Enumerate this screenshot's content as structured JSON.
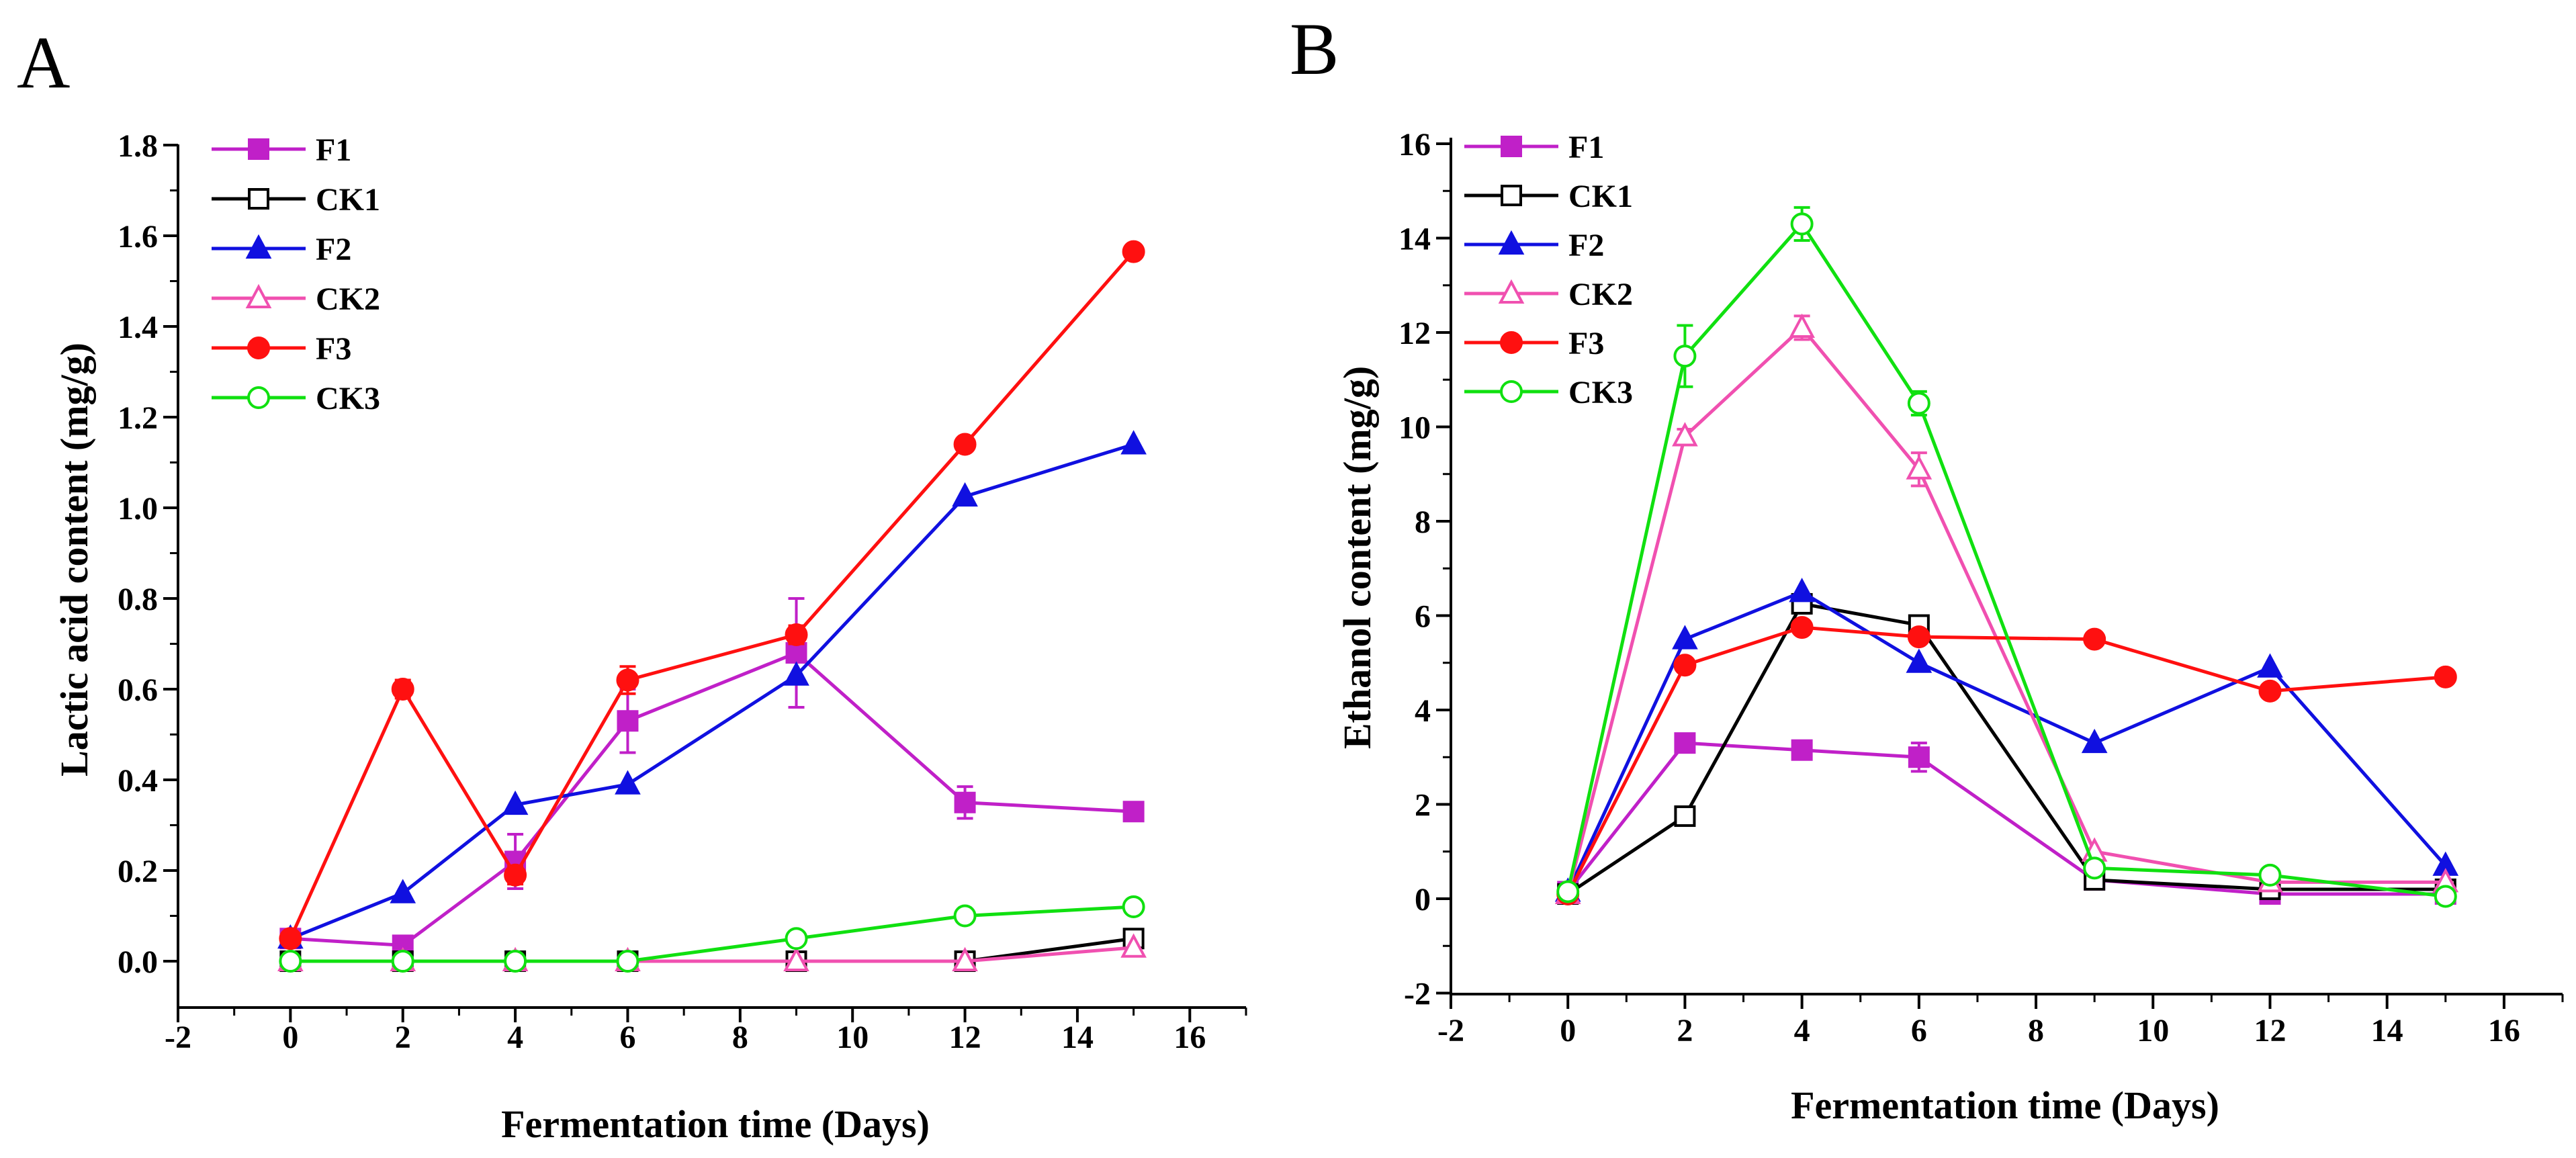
{
  "chart_data": [
    {
      "type": "line",
      "panel_label": "A",
      "xlabel": "Fermentation time (Days)",
      "ylabel": "Lactic acid content (mg/g)",
      "xlim": [
        -2,
        17
      ],
      "ylim": [
        -0.1,
        1.8
      ],
      "xticks": [
        -2,
        0,
        2,
        4,
        6,
        8,
        10,
        12,
        14,
        16
      ],
      "yticks": [
        0.0,
        0.2,
        0.4,
        0.6,
        0.8,
        1.0,
        1.2,
        1.4,
        1.6,
        1.8
      ],
      "ytick_labels": [
        "0.0",
        "0.2",
        "0.4",
        "0.6",
        "0.8",
        "1.0",
        "1.2",
        "1.4",
        "1.6",
        "1.8"
      ],
      "legend_position": "top-left",
      "x": [
        0,
        2,
        4,
        6,
        9,
        12,
        15
      ],
      "series": [
        {
          "name": "F1",
          "color": "#c020c8",
          "marker": "square",
          "filled": true,
          "values": [
            0.05,
            0.035,
            0.22,
            0.53,
            0.68,
            0.35,
            0.33
          ],
          "errors": [
            0,
            0,
            0.06,
            0.07,
            0.12,
            0.035,
            0.02
          ]
        },
        {
          "name": "CK1",
          "color": "#000000",
          "marker": "square",
          "filled": false,
          "values": [
            0,
            0,
            0,
            0,
            0,
            0,
            0.05
          ],
          "errors": [
            0,
            0,
            0,
            0,
            0,
            0,
            0.02
          ]
        },
        {
          "name": "F2",
          "color": "#1010e0",
          "marker": "triangle",
          "filled": true,
          "values": [
            0.05,
            0.15,
            0.345,
            0.39,
            0.63,
            1.025,
            1.14
          ],
          "errors": [
            0,
            0,
            0,
            0,
            0,
            0,
            0
          ]
        },
        {
          "name": "CK2",
          "color": "#f050b0",
          "marker": "triangle",
          "filled": false,
          "values": [
            0,
            0,
            0,
            0,
            0,
            0,
            0.03
          ],
          "errors": [
            0,
            0,
            0,
            0,
            0,
            0,
            0
          ]
        },
        {
          "name": "F3",
          "color": "#ff1010",
          "marker": "circle",
          "filled": true,
          "values": [
            0.05,
            0.6,
            0.19,
            0.62,
            0.72,
            1.14,
            1.565
          ],
          "errors": [
            0,
            0.02,
            0.02,
            0.03,
            0.02,
            0.01,
            0.01
          ]
        },
        {
          "name": "CK3",
          "color": "#10e010",
          "marker": "circle",
          "filled": false,
          "values": [
            0,
            0,
            0,
            0,
            0.05,
            0.1,
            0.12
          ],
          "errors": [
            0,
            0,
            0,
            0,
            0,
            0,
            0
          ]
        }
      ]
    },
    {
      "type": "line",
      "panel_label": "B",
      "xlabel": "Fermentation time (Days)",
      "ylabel": "Ethanol content (mg/g)",
      "xlim": [
        -2,
        17
      ],
      "ylim": [
        -2,
        16
      ],
      "xticks": [
        -2,
        0,
        2,
        4,
        6,
        8,
        10,
        12,
        14,
        16
      ],
      "yticks": [
        -2,
        0,
        2,
        4,
        6,
        8,
        10,
        12,
        14,
        16
      ],
      "ytick_labels": [
        "-2",
        "0",
        "2",
        "4",
        "6",
        "8",
        "10",
        "12",
        "14",
        "16"
      ],
      "legend_position": "top-left",
      "x": [
        0,
        2,
        4,
        6,
        9,
        12,
        15
      ],
      "series": [
        {
          "name": "F1",
          "color": "#c020c8",
          "marker": "square",
          "filled": true,
          "values": [
            0.15,
            3.3,
            3.15,
            3.0,
            0.4,
            0.1,
            0.1
          ],
          "errors": [
            0,
            0,
            0,
            0.3,
            0,
            0,
            0
          ]
        },
        {
          "name": "CK1",
          "color": "#000000",
          "marker": "square",
          "filled": false,
          "values": [
            0.1,
            1.75,
            6.25,
            5.8,
            0.4,
            0.2,
            0.2
          ],
          "errors": [
            0,
            0.15,
            0.2,
            0.15,
            0,
            0,
            0
          ]
        },
        {
          "name": "F2",
          "color": "#1010e0",
          "marker": "triangle",
          "filled": true,
          "values": [
            0.15,
            5.5,
            6.5,
            5.0,
            3.3,
            4.9,
            0.7
          ],
          "errors": [
            0,
            0,
            0,
            0,
            0,
            0,
            0
          ]
        },
        {
          "name": "CK2",
          "color": "#f050b0",
          "marker": "triangle",
          "filled": false,
          "values": [
            0.1,
            9.8,
            12.1,
            9.1,
            1.0,
            0.35,
            0.35
          ],
          "errors": [
            0,
            0.15,
            0.25,
            0.35,
            0,
            0,
            0
          ]
        },
        {
          "name": "F3",
          "color": "#ff1010",
          "marker": "circle",
          "filled": true,
          "values": [
            0.1,
            4.95,
            5.75,
            5.55,
            5.5,
            4.4,
            4.7
          ],
          "errors": [
            0,
            0,
            0,
            0,
            0,
            0,
            0
          ]
        },
        {
          "name": "CK3",
          "color": "#10e010",
          "marker": "circle",
          "filled": false,
          "values": [
            0.15,
            11.5,
            14.3,
            10.5,
            0.65,
            0.5,
            0.05
          ],
          "errors": [
            0,
            0.65,
            0.35,
            0.25,
            0,
            0,
            0
          ]
        }
      ]
    }
  ]
}
